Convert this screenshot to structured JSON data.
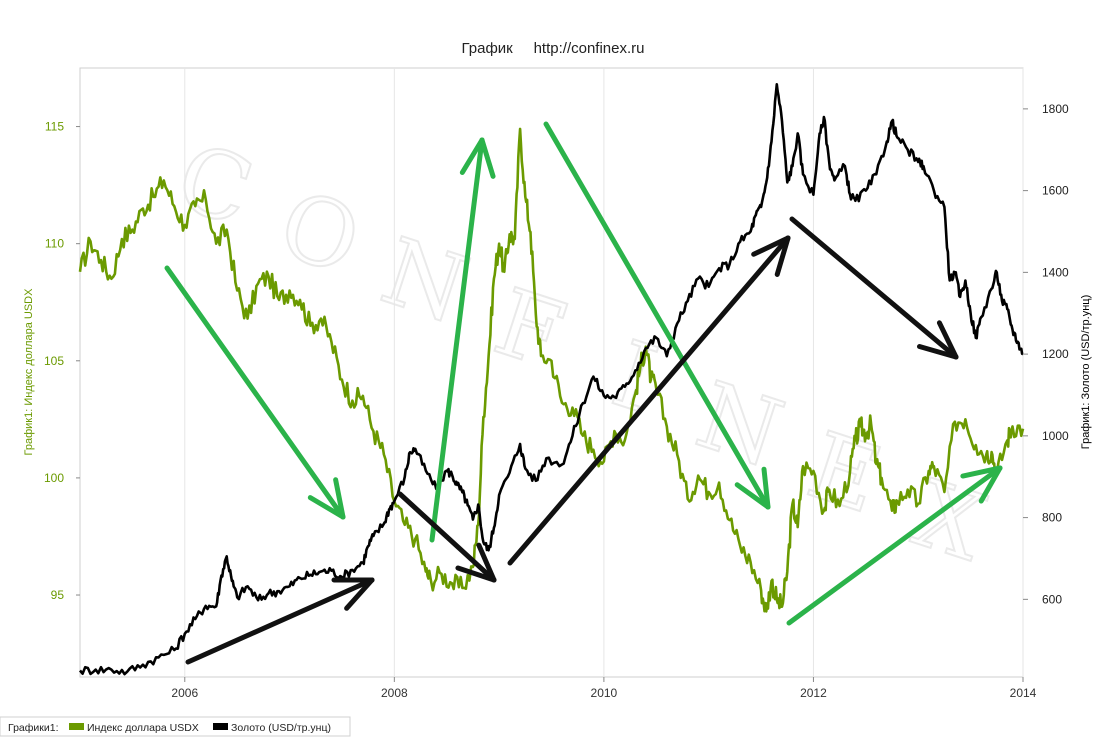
{
  "chart_data": {
    "type": "line",
    "title": "График     http://confinex.ru",
    "watermark": "CONFINEX",
    "x_range": [
      2005.0,
      2014.0
    ],
    "x_ticks": [
      "2006",
      "2008",
      "2010",
      "2012",
      "2014"
    ],
    "x_tick_values": [
      2006,
      2008,
      2010,
      2012,
      2014
    ],
    "left_axis": {
      "label": "График1: Индекс доллара USDX",
      "range": [
        91.5,
        117.5
      ],
      "ticks": [
        "95",
        "100",
        "105",
        "110",
        "115"
      ],
      "tick_values": [
        95,
        100,
        105,
        110,
        115
      ],
      "color": "#6b9a00"
    },
    "right_axis": {
      "label": "График1: Золото (USD/тр.унц)",
      "range": [
        410,
        1900
      ],
      "ticks": [
        "600",
        "800",
        "1000",
        "1200",
        "1400",
        "1600",
        "1800"
      ],
      "tick_values": [
        600,
        800,
        1000,
        1200,
        1400,
        1600,
        1800
      ],
      "color": "#000000"
    },
    "legend": {
      "prefix": "Графики1:",
      "placement": "bottom-left"
    },
    "series": [
      {
        "name": "Индекс доллара USDX",
        "axis": "left",
        "color": "#6b9a00",
        "points": [
          [
            2005.0,
            108.8
          ],
          [
            2005.1,
            110.1
          ],
          [
            2005.2,
            109.3
          ],
          [
            2005.3,
            108.5
          ],
          [
            2005.4,
            110.2
          ],
          [
            2005.5,
            110.6
          ],
          [
            2005.6,
            111.5
          ],
          [
            2005.7,
            112.0
          ],
          [
            2005.8,
            112.7
          ],
          [
            2005.9,
            111.6
          ],
          [
            2006.0,
            110.8
          ],
          [
            2006.1,
            111.6
          ],
          [
            2006.2,
            111.9
          ],
          [
            2006.3,
            110.0
          ],
          [
            2006.4,
            110.6
          ],
          [
            2006.5,
            108.0
          ],
          [
            2006.6,
            106.8
          ],
          [
            2006.7,
            108.3
          ],
          [
            2006.8,
            108.6
          ],
          [
            2006.9,
            107.6
          ],
          [
            2007.0,
            108.0
          ],
          [
            2007.1,
            107.6
          ],
          [
            2007.2,
            106.5
          ],
          [
            2007.3,
            106.8
          ],
          [
            2007.4,
            105.8
          ],
          [
            2007.5,
            104.2
          ],
          [
            2007.6,
            103.3
          ],
          [
            2007.7,
            103.5
          ],
          [
            2007.8,
            102.0
          ],
          [
            2007.9,
            101.0
          ],
          [
            2008.0,
            99.0
          ],
          [
            2008.1,
            98.0
          ],
          [
            2008.2,
            97.4
          ],
          [
            2008.3,
            96.0
          ],
          [
            2008.35,
            95.6
          ],
          [
            2008.45,
            95.9
          ],
          [
            2008.55,
            95.5
          ],
          [
            2008.65,
            95.3
          ],
          [
            2008.75,
            96.2
          ],
          [
            2008.8,
            98.0
          ],
          [
            2008.85,
            102.6
          ],
          [
            2008.9,
            105.2
          ],
          [
            2008.95,
            108.5
          ],
          [
            2009.0,
            110.0
          ],
          [
            2009.05,
            108.8
          ],
          [
            2009.1,
            110.4
          ],
          [
            2009.15,
            110.2
          ],
          [
            2009.2,
            114.9
          ],
          [
            2009.25,
            112.0
          ],
          [
            2009.3,
            110.5
          ],
          [
            2009.35,
            107.0
          ],
          [
            2009.4,
            105.2
          ],
          [
            2009.5,
            105.0
          ],
          [
            2009.6,
            103.2
          ],
          [
            2009.7,
            103.0
          ],
          [
            2009.8,
            101.8
          ],
          [
            2009.9,
            101.2
          ],
          [
            2010.0,
            100.7
          ],
          [
            2010.1,
            102.0
          ],
          [
            2010.2,
            101.6
          ],
          [
            2010.3,
            103.6
          ],
          [
            2010.35,
            104.8
          ],
          [
            2010.4,
            105.6
          ],
          [
            2010.45,
            104.2
          ],
          [
            2010.5,
            103.8
          ],
          [
            2010.6,
            102.2
          ],
          [
            2010.7,
            101.0
          ],
          [
            2010.8,
            99.1
          ],
          [
            2010.9,
            100.1
          ],
          [
            2011.0,
            99.4
          ],
          [
            2011.1,
            99.8
          ],
          [
            2011.2,
            98.2
          ],
          [
            2011.3,
            97.1
          ],
          [
            2011.4,
            96.4
          ],
          [
            2011.5,
            95.2
          ],
          [
            2011.55,
            94.3
          ],
          [
            2011.6,
            95.6
          ],
          [
            2011.65,
            94.8
          ],
          [
            2011.7,
            94.5
          ],
          [
            2011.75,
            96.0
          ],
          [
            2011.8,
            98.9
          ],
          [
            2011.85,
            97.9
          ],
          [
            2011.9,
            100.5
          ],
          [
            2012.0,
            100.3
          ],
          [
            2012.1,
            98.6
          ],
          [
            2012.15,
            99.5
          ],
          [
            2012.25,
            98.8
          ],
          [
            2012.35,
            100.3
          ],
          [
            2012.4,
            101.6
          ],
          [
            2012.45,
            102.2
          ],
          [
            2012.5,
            101.9
          ],
          [
            2012.55,
            102.3
          ],
          [
            2012.6,
            100.6
          ],
          [
            2012.65,
            100.0
          ],
          [
            2012.75,
            98.6
          ],
          [
            2012.8,
            99.0
          ],
          [
            2012.9,
            99.5
          ],
          [
            2013.0,
            98.9
          ],
          [
            2013.1,
            100.3
          ],
          [
            2013.15,
            100.5
          ],
          [
            2013.25,
            99.4
          ],
          [
            2013.35,
            102.4
          ],
          [
            2013.45,
            102.5
          ],
          [
            2013.55,
            101.4
          ],
          [
            2013.65,
            101.0
          ],
          [
            2013.7,
            101.1
          ],
          [
            2013.75,
            100.2
          ],
          [
            2013.85,
            101.6
          ],
          [
            2013.9,
            102.2
          ],
          [
            2014.0,
            102.1
          ]
        ]
      },
      {
        "name": "Золото (USD/тр.унц)",
        "axis": "right",
        "color": "#000000",
        "points": [
          [
            2005.0,
            426
          ],
          [
            2005.15,
            428
          ],
          [
            2005.3,
            428
          ],
          [
            2005.45,
            423
          ],
          [
            2005.6,
            440
          ],
          [
            2005.75,
            458
          ],
          [
            2005.9,
            476
          ],
          [
            2006.0,
            516
          ],
          [
            2006.1,
            552
          ],
          [
            2006.2,
            584
          ],
          [
            2006.3,
            583
          ],
          [
            2006.35,
            658
          ],
          [
            2006.4,
            705
          ],
          [
            2006.45,
            645
          ],
          [
            2006.5,
            605
          ],
          [
            2006.6,
            632
          ],
          [
            2006.7,
            598
          ],
          [
            2006.8,
            615
          ],
          [
            2006.9,
            620
          ],
          [
            2007.0,
            632
          ],
          [
            2007.1,
            652
          ],
          [
            2007.2,
            660
          ],
          [
            2007.3,
            668
          ],
          [
            2007.4,
            670
          ],
          [
            2007.5,
            655
          ],
          [
            2007.6,
            672
          ],
          [
            2007.7,
            690
          ],
          [
            2007.75,
            730
          ],
          [
            2007.8,
            755
          ],
          [
            2007.9,
            785
          ],
          [
            2007.95,
            820
          ],
          [
            2008.0,
            840
          ],
          [
            2008.1,
            900
          ],
          [
            2008.15,
            960
          ],
          [
            2008.2,
            968
          ],
          [
            2008.3,
            915
          ],
          [
            2008.4,
            870
          ],
          [
            2008.5,
            915
          ],
          [
            2008.55,
            905
          ],
          [
            2008.6,
            880
          ],
          [
            2008.65,
            862
          ],
          [
            2008.7,
            830
          ],
          [
            2008.75,
            795
          ],
          [
            2008.8,
            832
          ],
          [
            2008.85,
            740
          ],
          [
            2008.9,
            720
          ],
          [
            2008.95,
            775
          ],
          [
            2009.0,
            855
          ],
          [
            2009.1,
            910
          ],
          [
            2009.2,
            980
          ],
          [
            2009.25,
            920
          ],
          [
            2009.35,
            890
          ],
          [
            2009.45,
            945
          ],
          [
            2009.6,
            930
          ],
          [
            2009.7,
            1000
          ],
          [
            2009.8,
            1080
          ],
          [
            2009.9,
            1145
          ],
          [
            2010.0,
            1098
          ],
          [
            2010.1,
            1095
          ],
          [
            2010.2,
            1120
          ],
          [
            2010.3,
            1160
          ],
          [
            2010.4,
            1215
          ],
          [
            2010.5,
            1240
          ],
          [
            2010.6,
            1195
          ],
          [
            2010.7,
            1275
          ],
          [
            2010.8,
            1330
          ],
          [
            2010.9,
            1385
          ],
          [
            2011.0,
            1365
          ],
          [
            2011.1,
            1410
          ],
          [
            2011.2,
            1420
          ],
          [
            2011.3,
            1475
          ],
          [
            2011.4,
            1500
          ],
          [
            2011.45,
            1540
          ],
          [
            2011.5,
            1560
          ],
          [
            2011.55,
            1620
          ],
          [
            2011.6,
            1720
          ],
          [
            2011.65,
            1860
          ],
          [
            2011.7,
            1770
          ],
          [
            2011.75,
            1620
          ],
          [
            2011.8,
            1660
          ],
          [
            2011.85,
            1740
          ],
          [
            2011.9,
            1640
          ],
          [
            2012.0,
            1590
          ],
          [
            2012.05,
            1720
          ],
          [
            2012.1,
            1780
          ],
          [
            2012.15,
            1670
          ],
          [
            2012.2,
            1625
          ],
          [
            2012.3,
            1660
          ],
          [
            2012.35,
            1590
          ],
          [
            2012.4,
            1575
          ],
          [
            2012.5,
            1600
          ],
          [
            2012.6,
            1640
          ],
          [
            2012.7,
            1720
          ],
          [
            2012.75,
            1770
          ],
          [
            2012.8,
            1730
          ],
          [
            2012.9,
            1700
          ],
          [
            2013.0,
            1670
          ],
          [
            2013.05,
            1660
          ],
          [
            2013.15,
            1600
          ],
          [
            2013.25,
            1560
          ],
          [
            2013.3,
            1380
          ],
          [
            2013.35,
            1400
          ],
          [
            2013.4,
            1340
          ],
          [
            2013.45,
            1380
          ],
          [
            2013.5,
            1300
          ],
          [
            2013.55,
            1240
          ],
          [
            2013.6,
            1290
          ],
          [
            2013.7,
            1360
          ],
          [
            2013.75,
            1400
          ],
          [
            2013.8,
            1330
          ],
          [
            2013.85,
            1310
          ],
          [
            2013.9,
            1260
          ],
          [
            2013.95,
            1230
          ],
          [
            2014.0,
            1200
          ]
        ]
      }
    ]
  }
}
